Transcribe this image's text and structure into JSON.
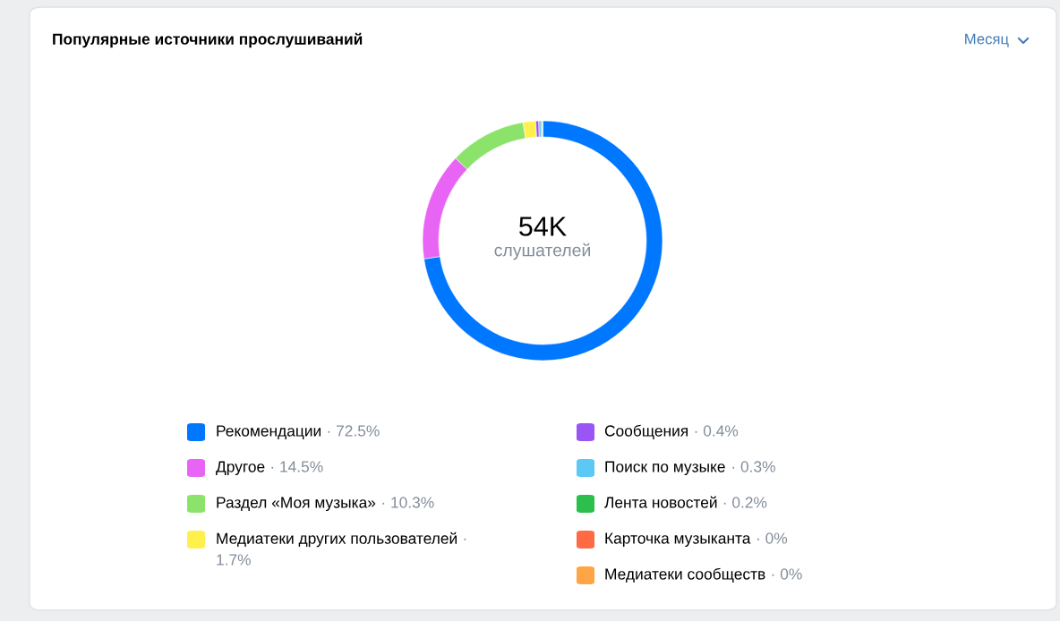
{
  "chart_data": {
    "type": "donut",
    "title": "Популярные источники прослушиваний",
    "categories": [
      "Рекомендации",
      "Другое",
      "Раздел «Моя музыка»",
      "Медиатеки других пользователей",
      "Сообщения",
      "Поиск по музыке",
      "Лента новостей",
      "Карточка музыканта",
      "Медиатеки сообществ"
    ],
    "values": [
      72.5,
      14.5,
      10.3,
      1.7,
      0.4,
      0.3,
      0.2,
      0,
      0
    ],
    "colors": [
      "#0077ff",
      "#e864f5",
      "#8ce36b",
      "#fff04d",
      "#9a55f5",
      "#5cc8f5",
      "#2dbf4c",
      "#ff6a45",
      "#ffa545"
    ],
    "value_labels": [
      "· 72.5%",
      "· 14.5%",
      "· 10.3%",
      "· 1.7%",
      "· 0.4%",
      "· 0.3%",
      "· 0.2%",
      "· 0%",
      "· 0%"
    ],
    "annotations": [
      "Месяц",
      "54K",
      "слушателей"
    ],
    "legend": "bottom"
  }
}
